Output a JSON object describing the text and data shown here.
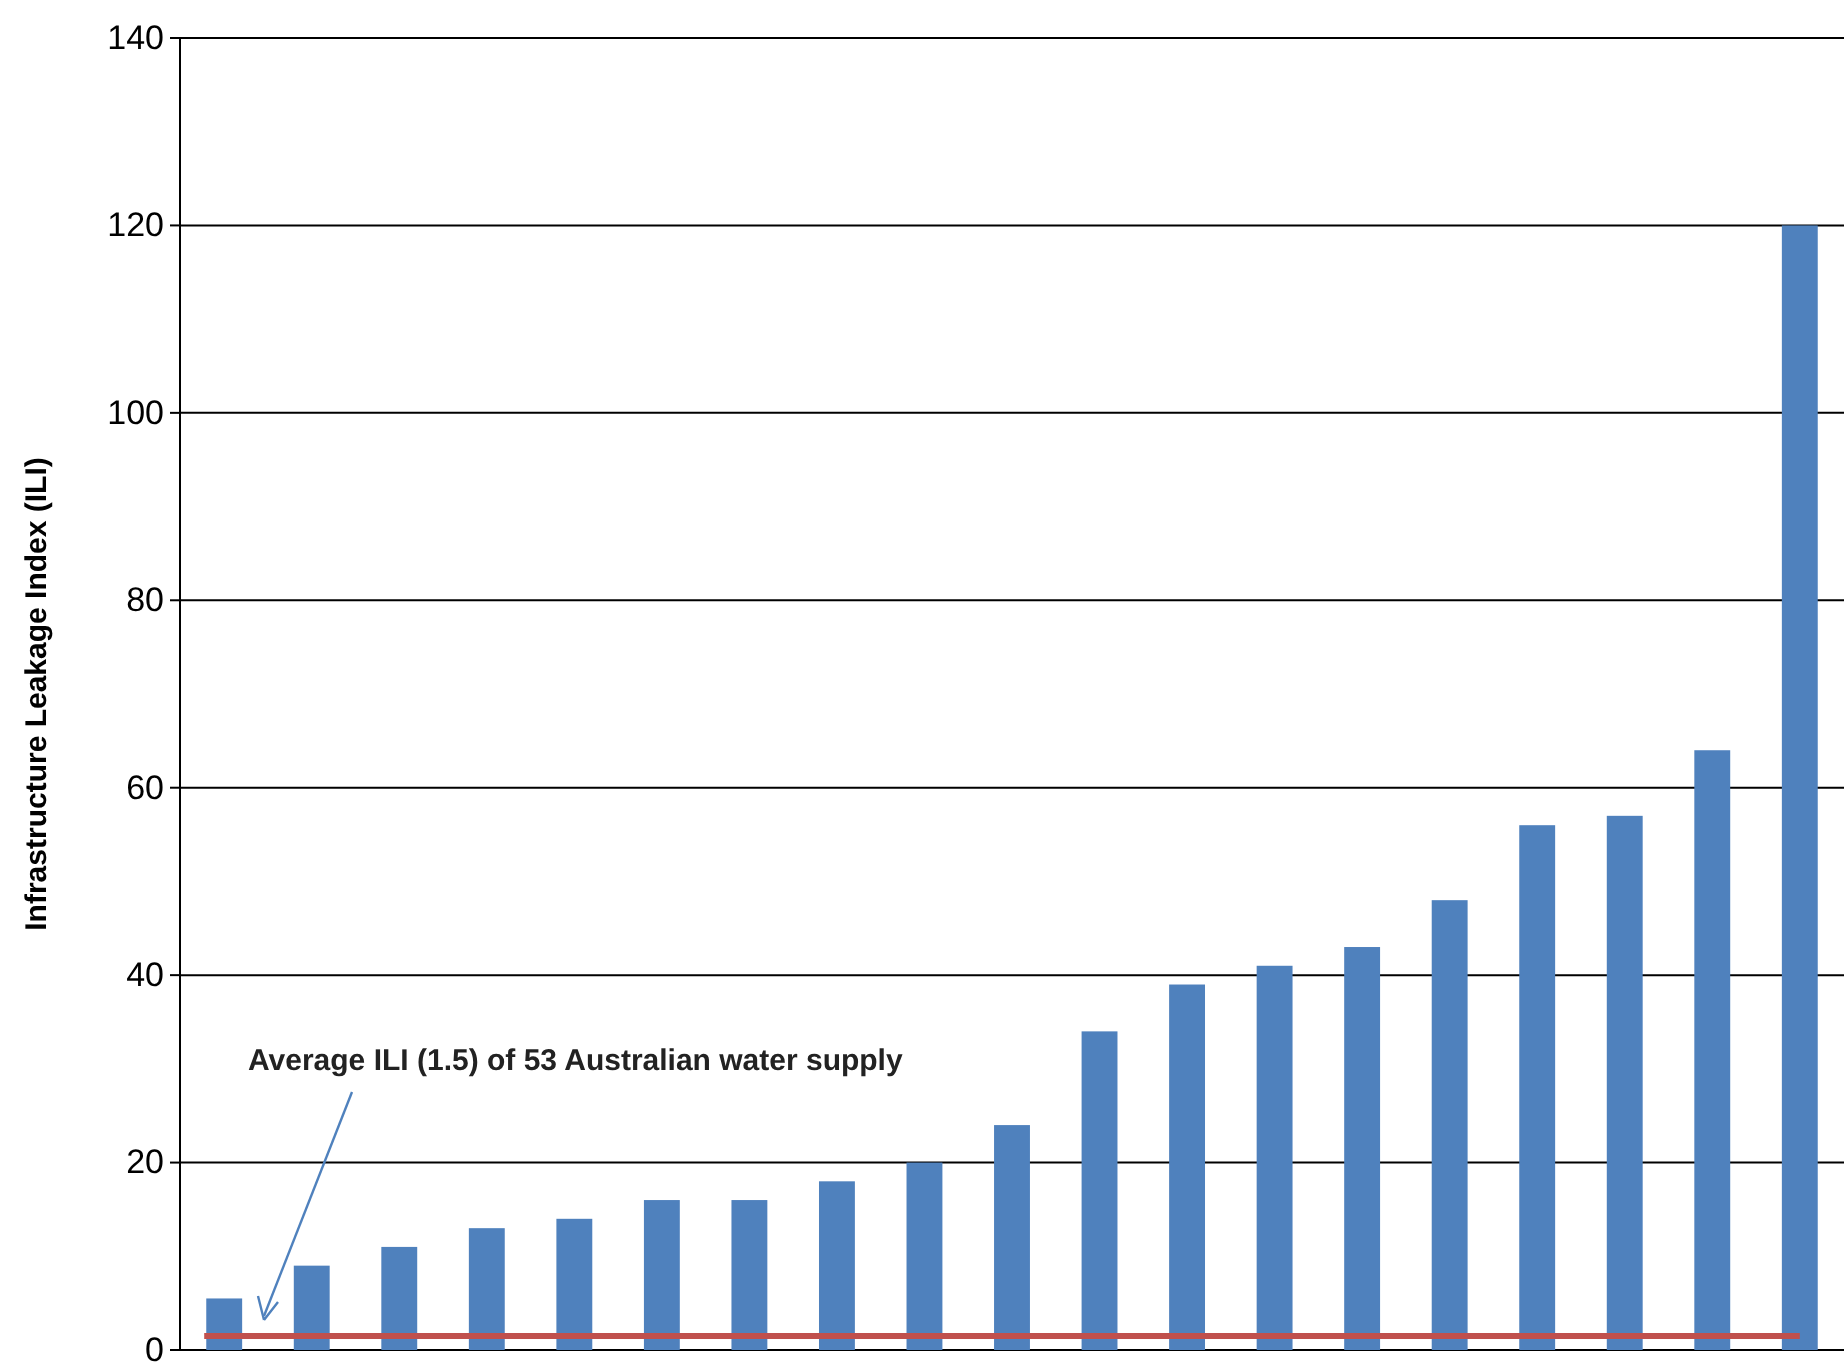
{
  "chart_data": {
    "type": "bar",
    "ylabel": "Infrastructure Leakage Index (ILI)",
    "categories": [
      null,
      null,
      null,
      null,
      null,
      null,
      null,
      null,
      null,
      null,
      null,
      null,
      null,
      null,
      null,
      null,
      null,
      null,
      null
    ],
    "values": [
      5.5,
      9,
      11,
      13,
      14,
      16,
      16,
      18,
      20,
      24,
      34,
      39,
      41,
      43,
      48,
      56,
      57,
      64,
      120
    ],
    "color": "#4f81bd",
    "ylim": [
      0,
      140
    ],
    "yticks": [
      0,
      20,
      40,
      60,
      80,
      100,
      120,
      140
    ],
    "grid": "y",
    "tick_labels": "y",
    "ref_lines": [
      {
        "axis": "y",
        "value": 1.5,
        "color": "#c0504d"
      }
    ],
    "annotations": [
      "Average ILI (1.5) of 53 Australian water supply"
    ]
  }
}
